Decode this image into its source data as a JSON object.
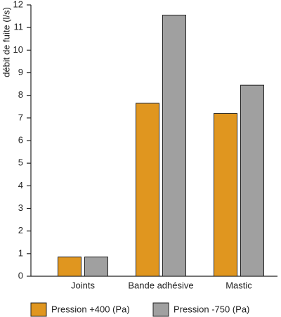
{
  "chart_data": {
    "type": "bar",
    "y_label": "débit de fuite (l/s)",
    "categories": [
      "Joints",
      "Bande adhésive",
      "Mastic"
    ],
    "series": [
      {
        "name": "Pression +400 (Pa)",
        "color": "#e0961f",
        "values": [
          0.85,
          7.65,
          7.2
        ]
      },
      {
        "name": "Pression -750 (Pa)",
        "color": "#a0a0a0",
        "values": [
          0.85,
          11.55,
          8.45
        ]
      }
    ],
    "ylim": [
      0,
      12
    ],
    "yticks": [
      0,
      1,
      2,
      3,
      4,
      5,
      6,
      7,
      8,
      9,
      10,
      11,
      12
    ],
    "grid": false
  }
}
